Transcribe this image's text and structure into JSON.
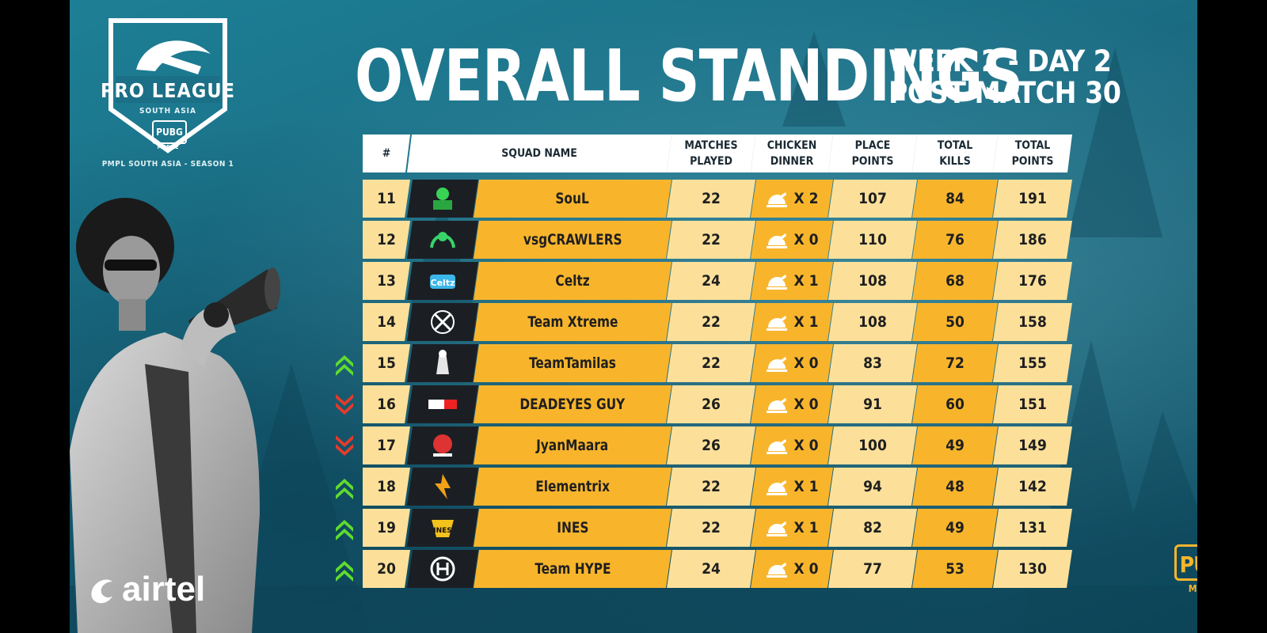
{
  "event": {
    "logo_title": "PRO LEAGUE",
    "logo_region": "SOUTH ASIA",
    "logo_pubg": "PUBG",
    "logo_mobile": "MOBILE",
    "season_line": "PMPL SOUTH ASIA - SEASON 1"
  },
  "title": "OVERALL STANDINGS",
  "subtitle_line1": "WEEK 2 - DAY 2",
  "subtitle_line2": "POST MATCH 30",
  "sponsor": "airtel",
  "corner_brand": {
    "box": "PUBG",
    "sub": "MOBILE"
  },
  "headers": {
    "rank": "#",
    "squad": "SQUAD NAME",
    "matches_1": "MATCHES",
    "matches_2": "PLAYED",
    "chicken_1": "CHICKEN",
    "chicken_2": "DINNER",
    "place_1": "PLACE",
    "place_2": "POINTS",
    "kills_1": "TOTAL",
    "kills_2": "KILLS",
    "total_1": "TOTAL",
    "total_2": "POINTS"
  },
  "colors": {
    "row_light": "#fce09a",
    "row_orange": "#f8b52c",
    "trend_up": "#5fdc2e",
    "trend_down": "#e83a2a"
  },
  "rows": [
    {
      "rank": "11",
      "squad": "SouL",
      "matches": "22",
      "chicken": "X 2",
      "place": "107",
      "kills": "84",
      "total": "191",
      "trend": "none",
      "logo": "soul-logo"
    },
    {
      "rank": "12",
      "squad": "vsgCRAWLERS",
      "matches": "22",
      "chicken": "X 0",
      "place": "110",
      "kills": "76",
      "total": "186",
      "trend": "none",
      "logo": "crawlers-logo"
    },
    {
      "rank": "13",
      "squad": "Celtz",
      "matches": "24",
      "chicken": "X 1",
      "place": "108",
      "kills": "68",
      "total": "176",
      "trend": "none",
      "logo": "celtz-logo"
    },
    {
      "rank": "14",
      "squad": "Team Xtreme",
      "matches": "22",
      "chicken": "X 1",
      "place": "108",
      "kills": "50",
      "total": "158",
      "trend": "none",
      "logo": "xtreme-logo"
    },
    {
      "rank": "15",
      "squad": "TeamTamilas",
      "matches": "22",
      "chicken": "X 0",
      "place": "83",
      "kills": "72",
      "total": "155",
      "trend": "up",
      "logo": "tamilas-logo"
    },
    {
      "rank": "16",
      "squad": "DEADEYES GUY",
      "matches": "26",
      "chicken": "X 0",
      "place": "91",
      "kills": "60",
      "total": "151",
      "trend": "down",
      "logo": "zeroshot-logo"
    },
    {
      "rank": "17",
      "squad": "JyanMaara",
      "matches": "26",
      "chicken": "X 0",
      "place": "100",
      "kills": "49",
      "total": "149",
      "trend": "down",
      "logo": "jyanmaara-logo"
    },
    {
      "rank": "18",
      "squad": "Elementrix",
      "matches": "22",
      "chicken": "X 1",
      "place": "94",
      "kills": "48",
      "total": "142",
      "trend": "up",
      "logo": "elementrix-logo"
    },
    {
      "rank": "19",
      "squad": "INES",
      "matches": "22",
      "chicken": "X 1",
      "place": "82",
      "kills": "49",
      "total": "131",
      "trend": "up",
      "logo": "ines-logo"
    },
    {
      "rank": "20",
      "squad": "Team HYPE",
      "matches": "24",
      "chicken": "X 0",
      "place": "77",
      "kills": "53",
      "total": "130",
      "trend": "up",
      "logo": "hype-logo"
    }
  ]
}
